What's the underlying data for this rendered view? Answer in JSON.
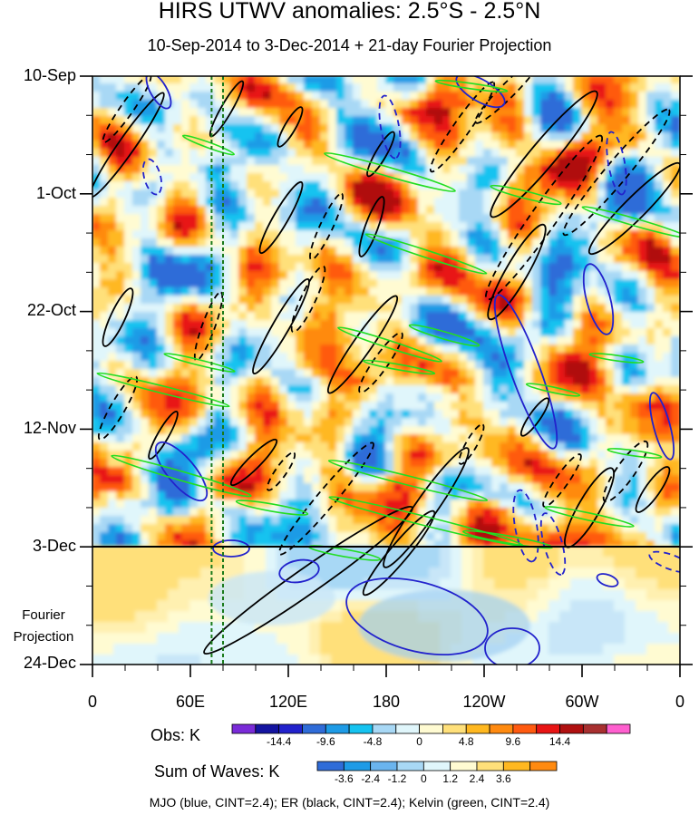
{
  "chart_data": {
    "type": "heatmap",
    "title": "HIRS UTWV anomalies: 2.5°S - 2.5°N",
    "subtitle": "10-Sep-2014 to 3-Dec-2014 + 21-day Fourier Projection",
    "y_ticks": [
      "10-Sep",
      "1-Oct",
      "22-Oct",
      "12-Nov",
      "3-Dec",
      "24-Dec"
    ],
    "y_range": [
      "10-Sep-2014",
      "24-Dec-2014"
    ],
    "projection_start": "3-Dec",
    "projection_label": [
      "Fourier",
      "Projection"
    ],
    "x_ticks": [
      "0",
      "60E",
      "120E",
      "180",
      "120W",
      "60W",
      "0"
    ],
    "x_range_deg": [
      0,
      360
    ],
    "marker_longitudes_deg": [
      73,
      80
    ],
    "obs_colorbar": {
      "label": "Obs: K",
      "levels": [
        "-14.4",
        "-9.6",
        "-4.8",
        "0",
        "4.8",
        "9.6",
        "14.4"
      ],
      "colors": [
        "#7a2bd8",
        "#1414a0",
        "#2222cc",
        "#2f6cd8",
        "#1e9be6",
        "#15c3f0",
        "#a8d8f5",
        "#e0f6fb",
        "#fffbd2",
        "#ffe07a",
        "#ffb820",
        "#ff8a10",
        "#ff5a10",
        "#e81414",
        "#b01010",
        "#a83030",
        "#ff5fcf"
      ]
    },
    "waves_colorbar": {
      "label": "Sum of Waves: K",
      "levels": [
        "-3.6",
        "-2.4",
        "-1.2",
        "0",
        "1.2",
        "2.4",
        "3.6"
      ],
      "colors": [
        "#2f6cd8",
        "#1e9be6",
        "#6ab4ee",
        "#a8d8f5",
        "#e0f6fb",
        "#fffbd2",
        "#ffe07a",
        "#ffb820",
        "#ff8a10"
      ]
    },
    "contour_legend": "MJO (blue, CINT=2.4); ER (black, CINT=2.4); Kelvin (green, CINT=2.4)"
  }
}
